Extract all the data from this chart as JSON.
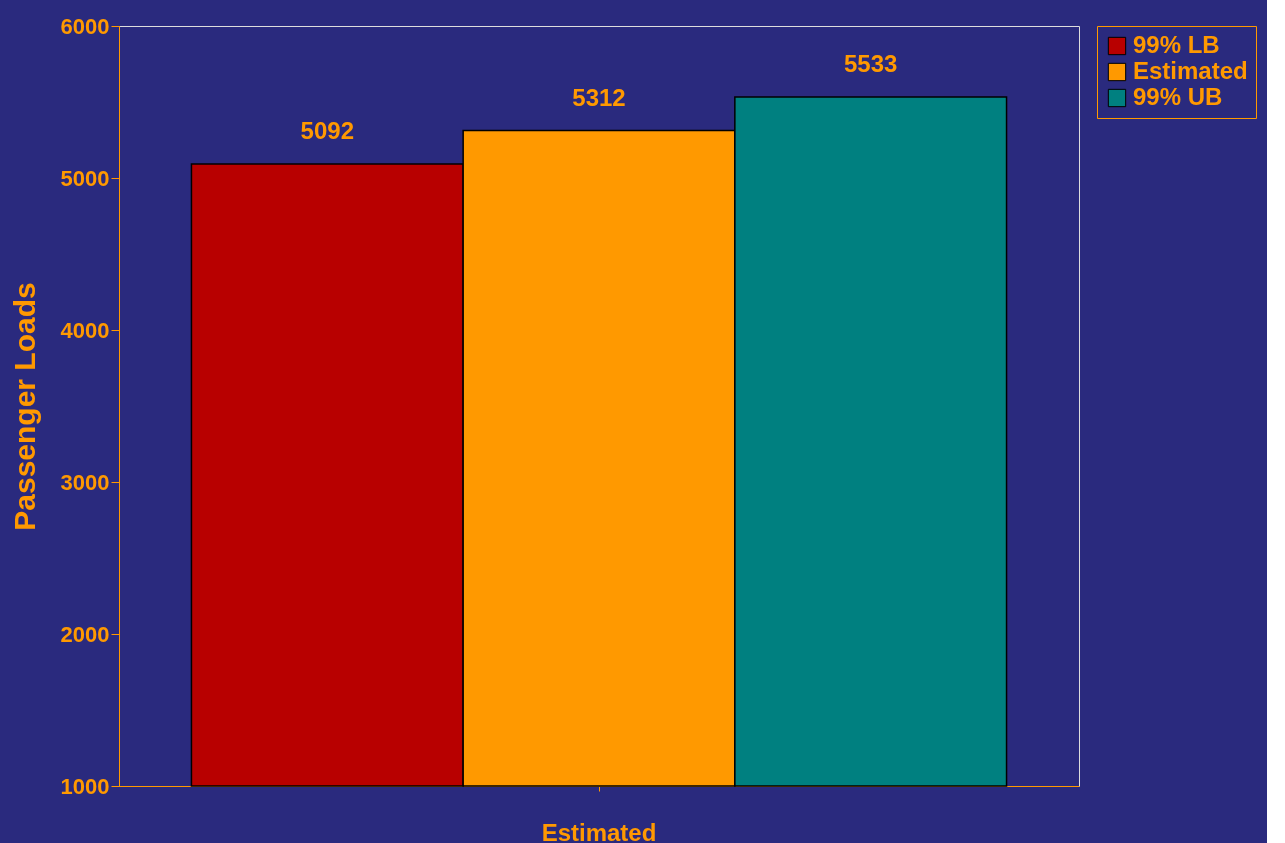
{
  "chart_data": {
    "type": "bar",
    "ylabel": "Passenger Loads",
    "categories": [
      "Estimated"
    ],
    "series": [
      {
        "name": "99% LB",
        "color": "#b80000",
        "values": [
          5092
        ]
      },
      {
        "name": "Estimated",
        "color": "#ff9900",
        "values": [
          5312
        ]
      },
      {
        "name": "99% UB",
        "color": "#008080",
        "values": [
          5533
        ]
      }
    ],
    "ylim": [
      1000,
      6000
    ],
    "yticks": [
      1000,
      2000,
      3000,
      4000,
      5000,
      6000
    ],
    "data_labels": true,
    "grid": false,
    "legend": "right"
  }
}
